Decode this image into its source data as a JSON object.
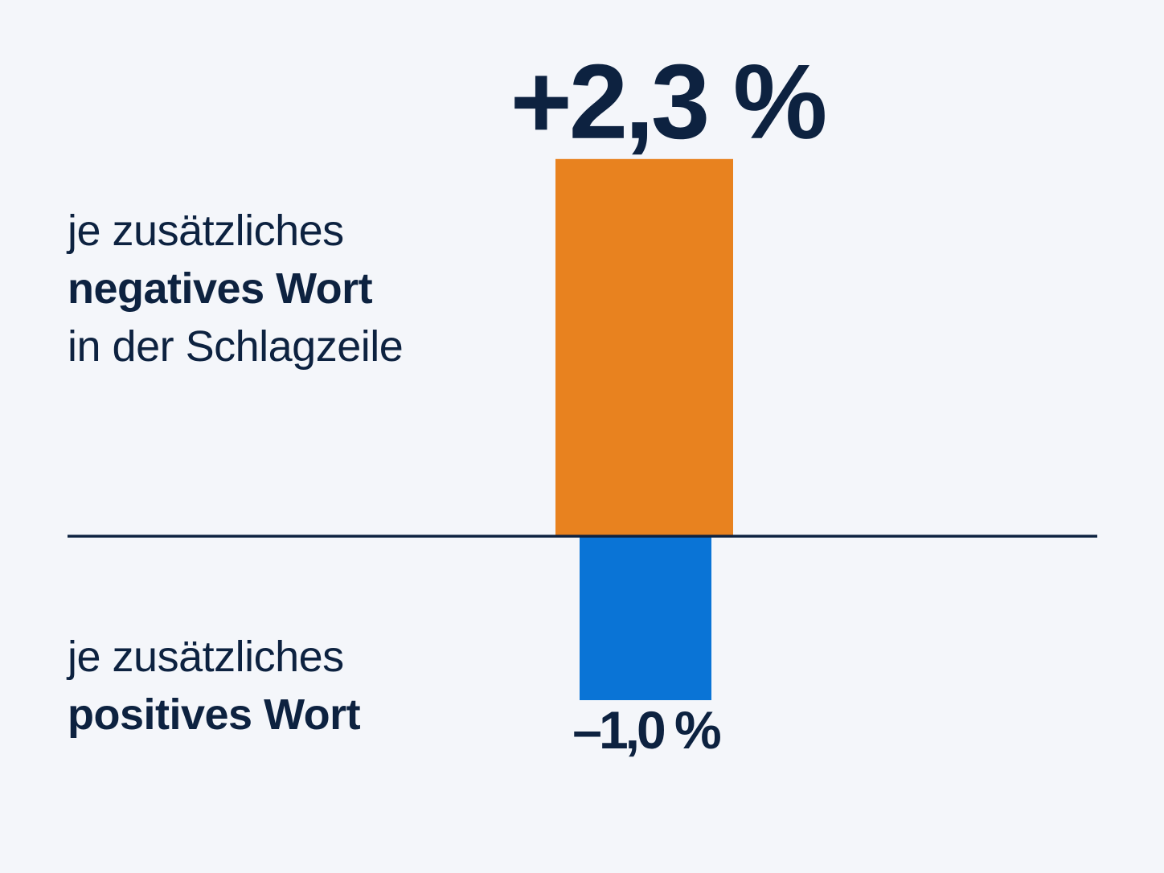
{
  "colors": {
    "background": "#f4f6fa",
    "text": "#0d2240",
    "baseline": "#0d2240",
    "negative_word_bar": "#e8821f",
    "positive_word_bar": "#0a74d6"
  },
  "labels": {
    "negative": {
      "line1": "je zusätzliches",
      "line2": "negatives Wort",
      "line3": "in der Schlagzeile"
    },
    "positive": {
      "line1": "je zusätzliches",
      "line2": "positives Wort"
    }
  },
  "chart_data": {
    "type": "bar",
    "orientation": "vertical",
    "unit": "%",
    "grid": false,
    "legend": "none",
    "ylim": [
      -1.0,
      2.3
    ],
    "categories": [
      "je zusätzliches negatives Wort in der Schlagzeile",
      "je zusätzliches positives Wort"
    ],
    "values": [
      2.3,
      -1.0
    ],
    "value_labels": [
      "+2,3 %",
      "–1,0 %"
    ]
  }
}
